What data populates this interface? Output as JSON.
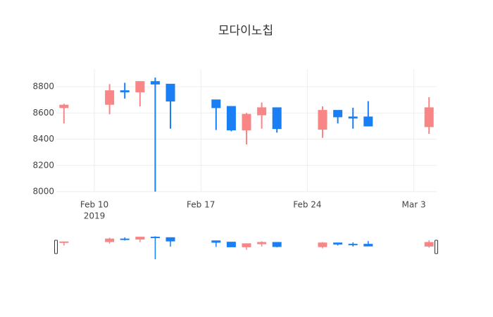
{
  "chart_data": {
    "type": "candlestick",
    "title": "모다이노칩",
    "x": [
      "2019-02-08",
      "2019-02-11",
      "2019-02-12",
      "2019-02-13",
      "2019-02-14",
      "2019-02-15",
      "2019-02-18",
      "2019-02-19",
      "2019-02-20",
      "2019-02-21",
      "2019-02-22",
      "2019-02-25",
      "2019-02-26",
      "2019-02-27",
      "2019-02-28",
      "2019-03-04"
    ],
    "open": [
      8640,
      8665,
      8770,
      8760,
      8840,
      8820,
      8700,
      8650,
      8470,
      8585,
      8640,
      8475,
      8620,
      8570,
      8570,
      8495
    ],
    "high": [
      8670,
      8820,
      8830,
      8840,
      8870,
      8820,
      8700,
      8650,
      8600,
      8680,
      8640,
      8650,
      8620,
      8640,
      8690,
      8720
    ],
    "low": [
      8520,
      8590,
      8710,
      8650,
      8000,
      8480,
      8470,
      8460,
      8360,
      8480,
      8450,
      8410,
      8520,
      8480,
      8500,
      8440
    ],
    "close": [
      8660,
      8770,
      8760,
      8840,
      8820,
      8690,
      8640,
      8470,
      8590,
      8640,
      8480,
      8620,
      8570,
      8560,
      8500,
      8640
    ],
    "increasing_color": "#f98686",
    "decreasing_color": "#1a7ff5",
    "xlim": [
      "2019-02-07T12:00",
      "2019-03-04T12:00"
    ],
    "xticks": [
      {
        "value": "2019-02-10",
        "label": "Feb 10"
      },
      {
        "value": "2019-02-17",
        "label": "Feb 17"
      },
      {
        "value": "2019-02-24",
        "label": "Feb 24"
      },
      {
        "value": "2019-03-03",
        "label": "Mar 3"
      }
    ],
    "xtick_year": "2019",
    "ylim": [
      8000,
      8935
    ],
    "yticks": [
      8000,
      8200,
      8400,
      8600,
      8800
    ],
    "grid": true,
    "rangeslider": true
  }
}
